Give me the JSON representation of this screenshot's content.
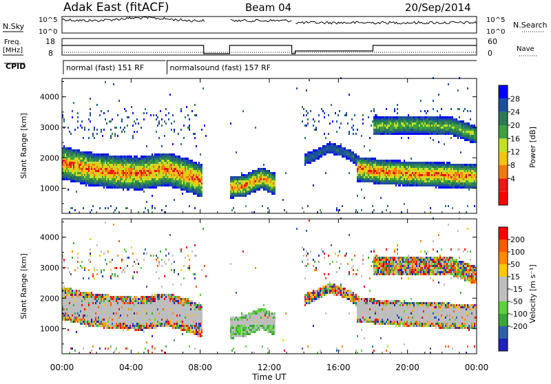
{
  "header": {
    "station": "Adak East (fitACF)",
    "beam": "Beam 04",
    "date": "20/Sep/2014"
  },
  "strip_labels": {
    "nsky": "N.Sky",
    "nsky_top": "10^5",
    "nsky_bottom": "10^0",
    "nsky_top_r": "10^5",
    "nsky_bottom_r": "10^0",
    "nsearch": "N.Search",
    "freq": "Freq.",
    "freq_unit": "[MHz]",
    "freq_top": "18",
    "freq_bottom": "8",
    "nave_top": "60",
    "nave_bottom": "0",
    "nave": "Nave",
    "cpid": "CPID"
  },
  "cpid_modes": [
    {
      "label": "normal (fast) 151 RF",
      "start": 0,
      "end": 6
    },
    {
      "label": "normalsound (fast) 157 RF",
      "start": 6,
      "end": 24
    }
  ],
  "panels": {
    "power": {
      "ylabel": "Slant Range [km]",
      "cbar_label": "Power [dB]"
    },
    "velocity": {
      "ylabel": "Slant Range [km]",
      "cbar_label": "Velocity [m s⁻¹]"
    }
  },
  "x_axis": {
    "label": "Time UT",
    "ticks": [
      "00:00",
      "04:00",
      "08:00",
      "12:00",
      "16:00",
      "20:00",
      "00:00"
    ]
  },
  "chart_data": [
    {
      "type": "heatmap",
      "name": "power",
      "x_range_hours": [
        0,
        24
      ],
      "ylim_km": [
        180,
        4600
      ],
      "yticks": [
        1000,
        2000,
        3000,
        4000
      ],
      "colorbar": {
        "ticks": [
          "28",
          "24",
          "20",
          "16",
          "12",
          "8",
          "4"
        ],
        "colors": [
          "#0000ff",
          "#1c4f9e",
          "#2b7a55",
          "#3ea042",
          "#c2e028",
          "#f5c214",
          "#f07a10",
          "#e81a12",
          "#ff0000"
        ]
      },
      "data_gaps_hours": [
        [
          8.3,
          9.7
        ],
        [
          13.3,
          13.5
        ]
      ],
      "echo_bands": [
        {
          "t": [
            0.0,
            1.5,
            3.0,
            4.5,
            6.0,
            7.2,
            8.1
          ],
          "center_km": [
            1800,
            1600,
            1500,
            1450,
            1600,
            1400,
            1200
          ],
          "width_km": 600,
          "peak_db": 26
        },
        {
          "t": [
            9.7,
            10.5,
            11.5,
            12.3
          ],
          "center_km": [
            1000,
            1050,
            1300,
            1100
          ],
          "width_km": 400,
          "peak_db": 24
        },
        {
          "t": [
            17.0,
            18.5,
            20.0,
            22.0,
            24.0
          ],
          "center_km": [
            1600,
            1500,
            1450,
            1400,
            1350
          ],
          "width_km": 450,
          "peak_db": 26
        },
        {
          "t": [
            18.0,
            20.0,
            22.5,
            24.0
          ],
          "center_km": [
            3000,
            3050,
            3000,
            2700
          ],
          "width_km": 350,
          "peak_db": 16
        },
        {
          "t": [
            14.0,
            15.5,
            16.5,
            17.5
          ],
          "center_km": [
            1900,
            2300,
            2100,
            1700
          ],
          "width_km": 250,
          "peak_db": 8
        }
      ]
    },
    {
      "type": "heatmap",
      "name": "velocity",
      "x_range_hours": [
        0,
        24
      ],
      "ylim_km": [
        180,
        4600
      ],
      "yticks": [
        1000,
        2000,
        3000,
        4000
      ],
      "colorbar": {
        "ticks": [
          "200",
          "100",
          "50",
          "15",
          "-15",
          "-50",
          "-100",
          "-200"
        ],
        "colors": [
          "#ff0000",
          "#ff5a00",
          "#ff8c00",
          "#ffc800",
          "#bebebe",
          "#bebebe",
          "#5cd13a",
          "#38a836",
          "#2f5fa8",
          "#2020c0"
        ]
      },
      "data_gaps_hours": [
        [
          8.3,
          9.7
        ],
        [
          13.3,
          13.5
        ]
      ]
    }
  ]
}
